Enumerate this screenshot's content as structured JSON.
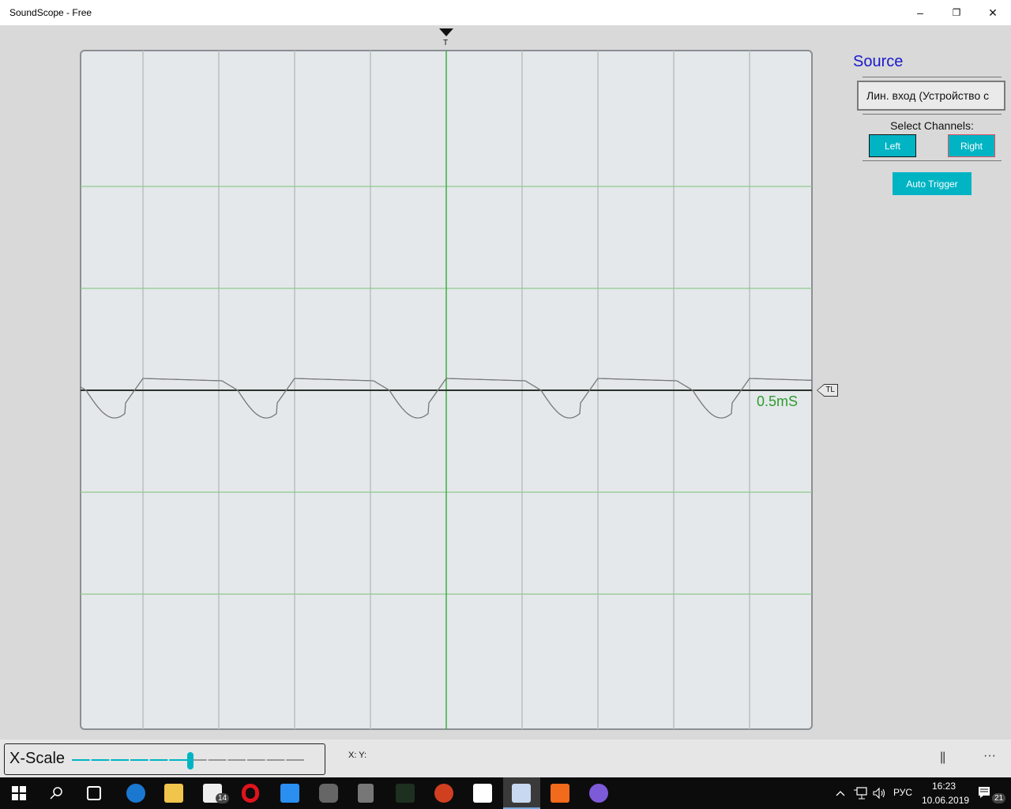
{
  "window": {
    "title": "SoundScope - Free",
    "minimize": "–",
    "restore": "❐",
    "close": "✕"
  },
  "scope": {
    "trigger_marker": "T",
    "trigger_level_marker": "TL",
    "time_scale": "0.5mS",
    "colors": {
      "grid_h": "#8fc98f",
      "grid_v": "#b8c0c0",
      "center_v": "#3cb043",
      "baseline": "#2a332a",
      "trace": "#777777"
    }
  },
  "panel": {
    "source_title": "Source",
    "source_value": "Лин. вход (Устройство с",
    "select_channels": "Select Channels:",
    "left": "Left",
    "right": "Right",
    "auto_trigger": "Auto Trigger",
    "accent": "#00b4c4"
  },
  "bottom": {
    "xscale_label": "X-Scale",
    "xscale_value_percent": 50,
    "xy_readout": "X:  Y:",
    "pause": "||",
    "more": "···"
  },
  "taskbar": {
    "icons": [
      "windows-start-icon",
      "search-icon",
      "task-view-icon",
      "edge-icon",
      "file-explorer-icon",
      "mail-icon",
      "opera-icon",
      "app-icon",
      "app-icon",
      "app-icon",
      "app-icon",
      "ccleaner-icon",
      "store-icon",
      "soundscope-icon",
      "recorder-icon",
      "viber-icon"
    ],
    "mail_badge": "14",
    "lang": "РУС",
    "time": "16:23",
    "date": "10.06.2019",
    "notifications": "21"
  }
}
